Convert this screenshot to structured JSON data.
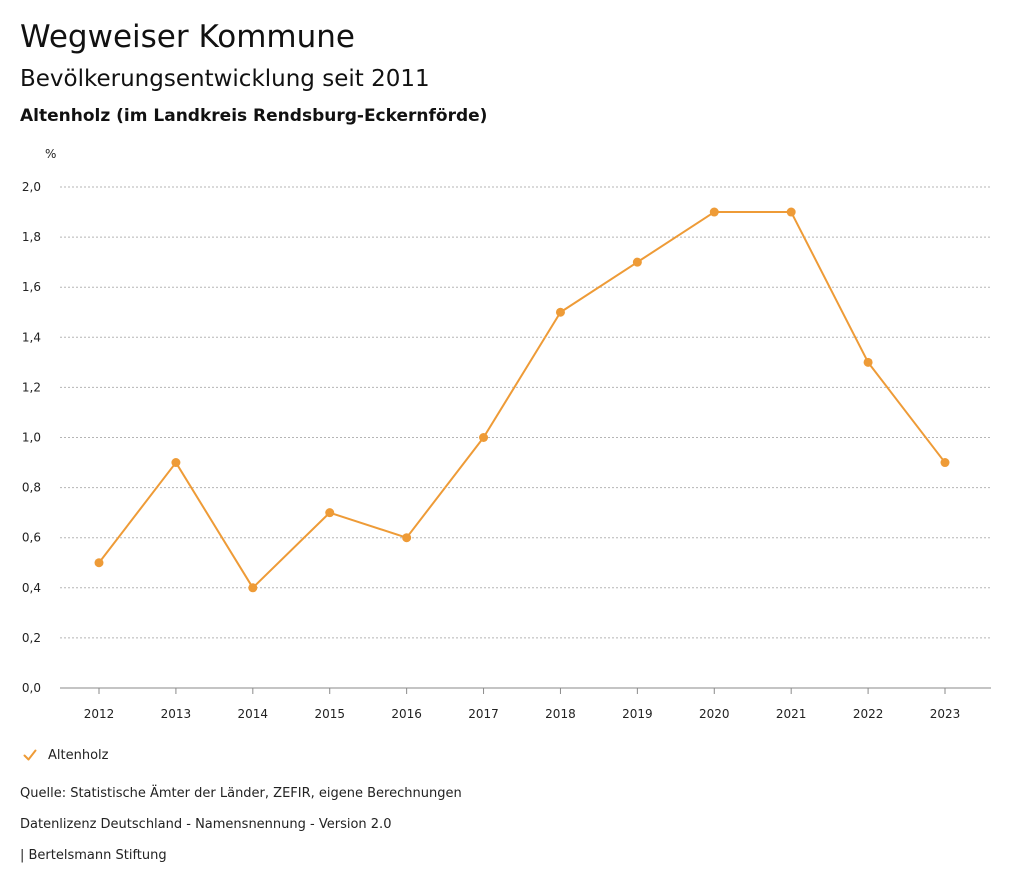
{
  "header": {
    "title": "Wegweiser Kommune",
    "subtitle": "Bevölkerungsentwicklung seit 2011",
    "region": "Altenholz (im Landkreis Rendsburg-Eckernförde)"
  },
  "chart_data": {
    "type": "line",
    "x": [
      "2012",
      "2013",
      "2014",
      "2015",
      "2016",
      "2017",
      "2018",
      "2019",
      "2020",
      "2021",
      "2022",
      "2023"
    ],
    "series": [
      {
        "name": "Altenholz",
        "values": [
          0.5,
          0.9,
          0.4,
          0.7,
          0.6,
          1.0,
          1.5,
          1.7,
          1.9,
          1.9,
          1.3,
          0.9
        ],
        "color": "#ee9b37"
      }
    ],
    "ylabel": "%",
    "ylim": [
      0,
      2
    ],
    "yticks": [
      "0,0",
      "0,2",
      "0,4",
      "0,6",
      "0,8",
      "1,0",
      "1,2",
      "1,4",
      "1,6",
      "1,8",
      "2,0"
    ],
    "grid": true,
    "legend": "bottom-left"
  },
  "legend": {
    "label": "Altenholz",
    "icon": "check-mark-icon"
  },
  "footer": {
    "source": "Quelle: Statistische Ämter der Länder, ZEFIR, eigene Berechnungen",
    "license": "Datenlizenz Deutschland - Namensnennung - Version 2.0",
    "publisher": "| Bertelsmann Stiftung"
  }
}
